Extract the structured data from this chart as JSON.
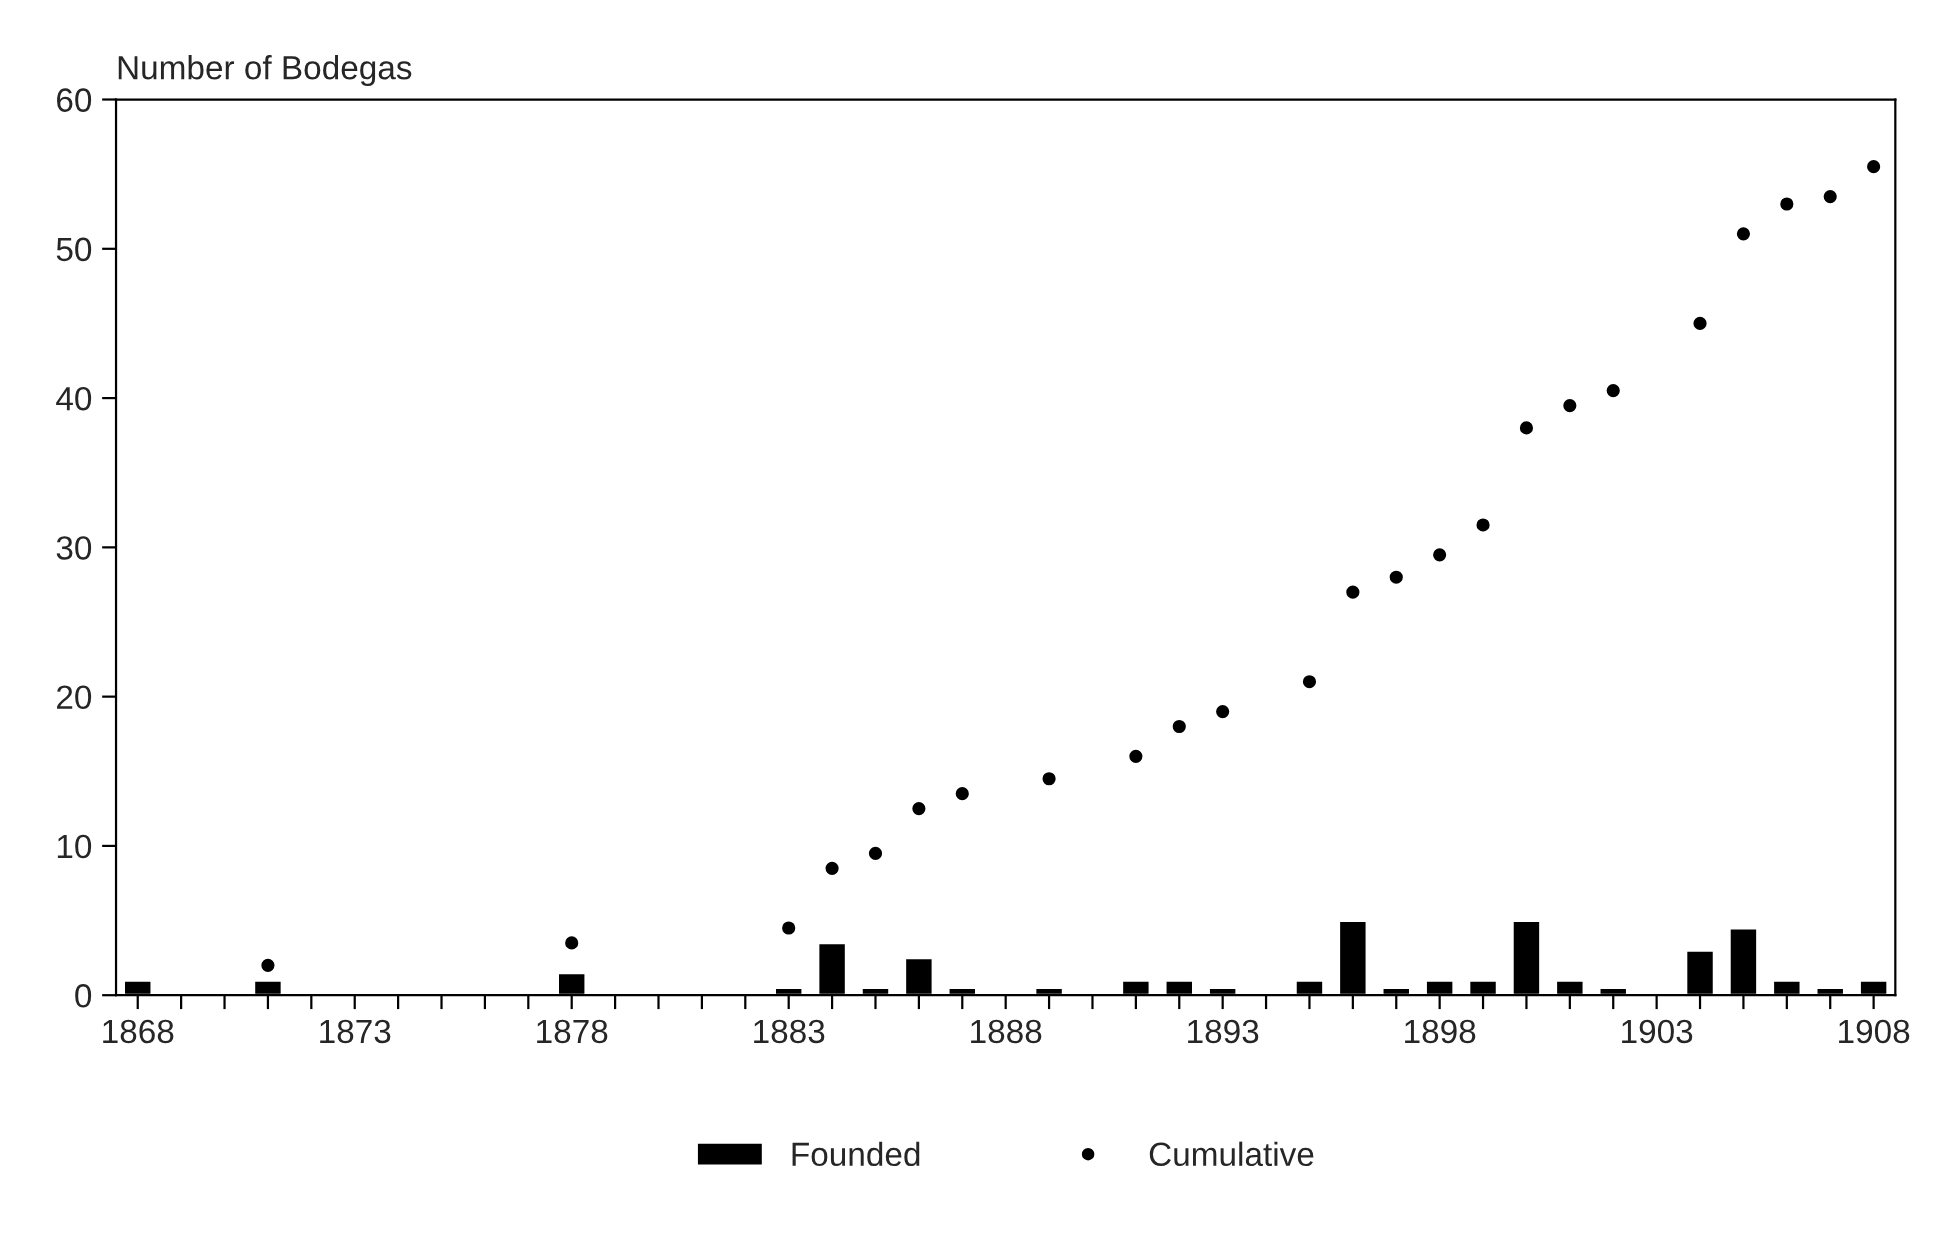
{
  "chart_data": {
    "type": "bar",
    "ylabel": "Number of Bodegas",
    "series": [
      {
        "name": "Founded",
        "color": "#000000",
        "x": [
          1868,
          1871,
          1878,
          1883,
          1884,
          1885,
          1886,
          1887,
          1889,
          1891,
          1892,
          1893,
          1895,
          1896,
          1897,
          1898,
          1899,
          1900,
          1901,
          1902,
          1904,
          1905,
          1906,
          1907,
          1908
        ],
        "values": [
          1,
          1,
          1.5,
          0.5,
          3.5,
          0.5,
          2.5,
          0.5,
          0.5,
          1,
          1,
          0.5,
          1,
          5,
          0.5,
          1,
          1,
          5,
          1,
          0.5,
          3,
          4.5,
          1,
          0.5,
          1
        ]
      },
      {
        "name": "Cumulative",
        "type": "scatter",
        "marker": "circle",
        "color": "#000000",
        "x": [
          1871,
          1878,
          1883,
          1884,
          1885,
          1886,
          1887,
          1889,
          1891,
          1892,
          1893,
          1895,
          1896,
          1897,
          1898,
          1899,
          1900,
          1901,
          1902,
          1904,
          1905,
          1906,
          1907,
          1908
        ],
        "values": [
          2,
          3.5,
          4.5,
          8.5,
          9.5,
          12.5,
          13.5,
          14.5,
          16,
          18,
          19,
          21,
          27,
          28,
          29.5,
          31.5,
          38,
          39.5,
          40.5,
          45,
          51,
          53,
          53.5,
          55.5
        ]
      }
    ],
    "xlim": [
      1867.5,
      1908.5
    ],
    "ylim": [
      0,
      60
    ],
    "xticks": [
      1868,
      {
        "value": 1869,
        "label": null
      },
      {
        "value": 1870,
        "label": null
      },
      {
        "value": 1871,
        "label": null
      },
      {
        "value": 1872,
        "label": null
      },
      1873,
      {
        "value": 1874,
        "label": null
      },
      {
        "value": 1875,
        "label": null
      },
      {
        "value": 1876,
        "label": null
      },
      {
        "value": 1877,
        "label": null
      },
      1878,
      {
        "value": 1879,
        "label": null
      },
      {
        "value": 1880,
        "label": null
      },
      {
        "value": 1881,
        "label": null
      },
      {
        "value": 1882,
        "label": null
      },
      1883,
      {
        "value": 1884,
        "label": null
      },
      {
        "value": 1885,
        "label": null
      },
      {
        "value": 1886,
        "label": null
      },
      {
        "value": 1887,
        "label": null
      },
      1888,
      {
        "value": 1889,
        "label": null
      },
      {
        "value": 1890,
        "label": null
      },
      {
        "value": 1891,
        "label": null
      },
      {
        "value": 1892,
        "label": null
      },
      1893,
      {
        "value": 1894,
        "label": null
      },
      {
        "value": 1895,
        "label": null
      },
      {
        "value": 1896,
        "label": null
      },
      {
        "value": 1897,
        "label": null
      },
      1898,
      {
        "value": 1899,
        "label": null
      },
      {
        "value": 1900,
        "label": null
      },
      {
        "value": 1901,
        "label": null
      },
      {
        "value": 1902,
        "label": null
      },
      1903,
      {
        "value": 1904,
        "label": null
      },
      {
        "value": 1905,
        "label": null
      },
      {
        "value": 1906,
        "label": null
      },
      {
        "value": 1907,
        "label": null
      },
      1908
    ],
    "yticks": [
      0,
      10,
      20,
      30,
      40,
      50,
      60
    ],
    "grid": false,
    "legend": "bottom"
  }
}
